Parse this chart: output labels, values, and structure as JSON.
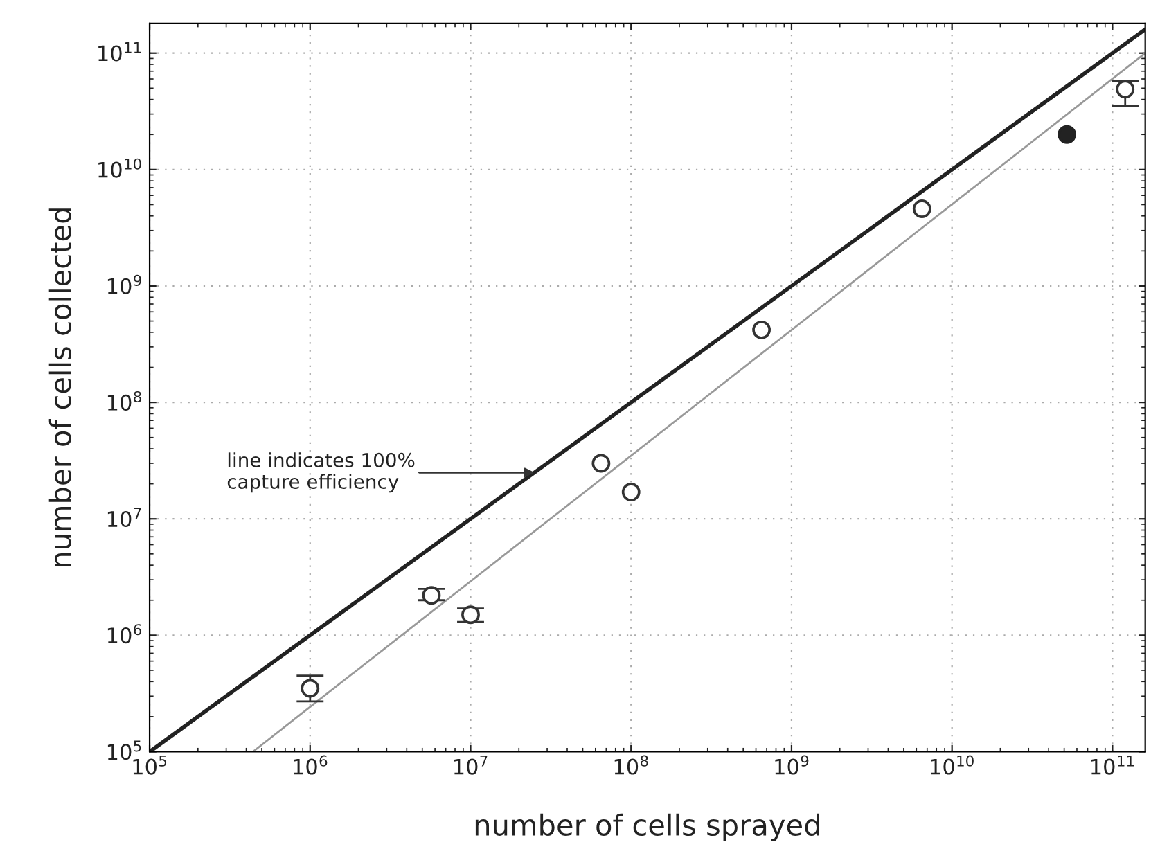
{
  "chart_data": {
    "type": "scatter",
    "xlabel": "number of cells sprayed",
    "ylabel": "number of cells collected",
    "log": "xy",
    "grid": true,
    "xlim": [
      100000.0,
      160000000000.0
    ],
    "ylim": [
      100000.0,
      180000000000.0
    ],
    "xticks": [
      {
        "value": 100000.0,
        "label": "10$^{5}$"
      },
      {
        "value": 1000000.0,
        "label": "10$^{6}$"
      },
      {
        "value": 10000000.0,
        "label": "10$^{7}$"
      },
      {
        "value": 100000000.0,
        "label": "10$^{8}$"
      },
      {
        "value": 1000000000.0,
        "label": "10$^{9}$"
      },
      {
        "value": 10000000000.0,
        "label": "10$^{10}$"
      },
      {
        "value": 100000000000.0,
        "label": "10$^{11}$"
      }
    ],
    "yticks": [
      {
        "value": 100000.0,
        "label": "10$^{5}$"
      },
      {
        "value": 1000000.0,
        "label": "10$^{6}$"
      },
      {
        "value": 10000000.0,
        "label": "10$^{7}$"
      },
      {
        "value": 100000000.0,
        "label": "10$^{8}$"
      },
      {
        "value": 1000000000.0,
        "label": "10$^{9}$"
      },
      {
        "value": 10000000000.0,
        "label": "10$^{10}$"
      },
      {
        "value": 100000000000.0,
        "label": "10$^{11}$"
      }
    ],
    "series": [
      {
        "type": "line",
        "marker": "none",
        "color": "#222222",
        "line_style": "solid",
        "x": [
          100000.0,
          160000000000.0
        ],
        "values": [
          100000.0,
          160000000000.0
        ]
      },
      {
        "type": "line",
        "marker": "none",
        "color": "#999999",
        "line_style": "solid",
        "x": [
          440000.0,
          160000000000.0
        ],
        "values": [
          100000.0,
          100000000000.0
        ]
      },
      {
        "marker": "circle",
        "color": "#333333",
        "colors": [
          "#ffffff",
          "#ffffff",
          "#ffffff",
          "#ffffff",
          "#ffffff",
          "#ffffff",
          "#ffffff",
          "#ffffff"
        ],
        "x": [
          1000000.0,
          5700000.0,
          10000000.0,
          65000000.0,
          100000000.0,
          650000000.0,
          6500000000.0,
          120000000000.0
        ],
        "values": [
          350000.0,
          2200000.0,
          1500000.0,
          30000000.0,
          17000000.0,
          420000000.0,
          4600000000.0,
          49000000000.0
        ],
        "errors": [
          [
            270000.0,
            450000.0
          ],
          [
            2000000.0,
            2500000.0
          ],
          [
            1300000.0,
            1700000.0
          ],
          null,
          null,
          null,
          null,
          [
            35000000000.0,
            58000000000.0
          ]
        ]
      },
      {
        "marker": "circle",
        "color": "#222222",
        "colors": [
          "#222222"
        ],
        "x": [
          52000000000.0
        ],
        "values": [
          20000000000.0
        ]
      }
    ],
    "annotations": [
      {
        "text": "line indicates 100%\ncapture efficiency",
        "x": 25000000.0,
        "y": 25000000.0
      }
    ]
  }
}
